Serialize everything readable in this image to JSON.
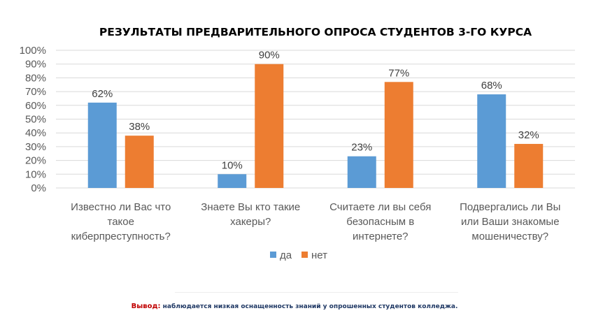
{
  "chart_data": {
    "type": "bar",
    "title": "РЕЗУЛЬТАТЫ ПРЕДВАРИТЕЛЬНОГО ОПРОСА СТУДЕНТОВ 3-ГО КУРСА",
    "categories": [
      [
        "Известно  ли Вас что",
        "такое",
        "киберпреступность?"
      ],
      [
        "Знаете Вы кто такие",
        "хакеры?"
      ],
      [
        "Считаете ли вы себя",
        "безопасным в",
        "интернете?"
      ],
      [
        "Подвергались ли Вы",
        "или Ваши знакомые",
        "мошеничеству?"
      ]
    ],
    "series": [
      {
        "name": "да",
        "color": "#5b9bd5",
        "values": [
          62,
          10,
          23,
          68
        ],
        "labels": [
          "62%",
          "10%",
          "23%",
          "68%"
        ]
      },
      {
        "name": "нет",
        "color": "#ed7d31",
        "values": [
          38,
          90,
          77,
          32
        ],
        "labels": [
          "38%",
          "90%",
          "77%",
          "32%"
        ]
      }
    ],
    "ylim": [
      0,
      100
    ],
    "yticks": [
      "0%",
      "10%",
      "20%",
      "30%",
      "40%",
      "50%",
      "60%",
      "70%",
      "80%",
      "90%",
      "100%"
    ],
    "grid": true,
    "legend": "bottom"
  },
  "conclusion": {
    "label": "Вывод:",
    "text": " наблюдается низкая оснащенность знаний у опрошенных студентов колледжа."
  }
}
